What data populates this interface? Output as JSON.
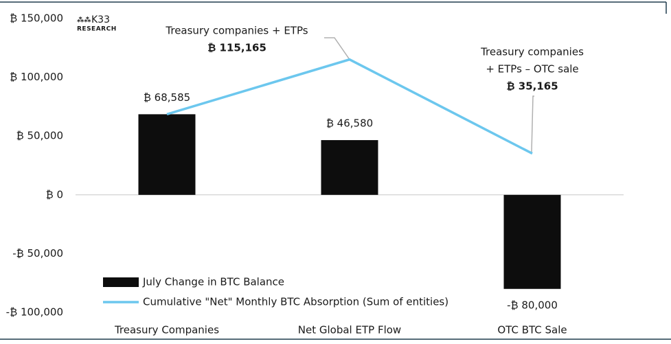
{
  "chart_data": {
    "type": "bar",
    "logo": {
      "mark": "K33",
      "subtitle": "RESEARCH"
    },
    "categories": [
      "Treasury Companies",
      "Net Global ETP Flow",
      "OTC BTC Sale"
    ],
    "series": [
      {
        "name": "July Change in BTC Balance",
        "type": "bar",
        "color": "#0d0d0d",
        "values": [
          68585,
          46580,
          -80000
        ],
        "value_labels": [
          "₿ 68,585",
          "₿ 46,580",
          "-₿ 80,000"
        ]
      },
      {
        "name": "Cumulative \"Net\" Monthly BTC Absorption (Sum of entities)",
        "type": "line",
        "color": "#6cc7ee",
        "values": [
          68585,
          115165,
          35165
        ],
        "value_labels": [
          null,
          "₿ 115,165",
          "₿ 35,165"
        ]
      }
    ],
    "annotations": [
      {
        "lines": [
          "Treasury companies + ETPs"
        ]
      },
      {
        "lines": [
          "Treasury companies",
          "+ ETPs – OTC sale"
        ]
      }
    ],
    "ylim": [
      -100000,
      150000
    ],
    "yticks": [
      {
        "value": -100000,
        "label": "-₿ 100,000"
      },
      {
        "value": -50000,
        "label": "-₿ 50,000"
      },
      {
        "value": 0,
        "label": "₿ 0"
      },
      {
        "value": 50000,
        "label": "₿ 50,000"
      },
      {
        "value": 100000,
        "label": "₿ 100,000"
      },
      {
        "value": 150000,
        "label": "₿ 150,000"
      }
    ],
    "legend": "lower left"
  }
}
